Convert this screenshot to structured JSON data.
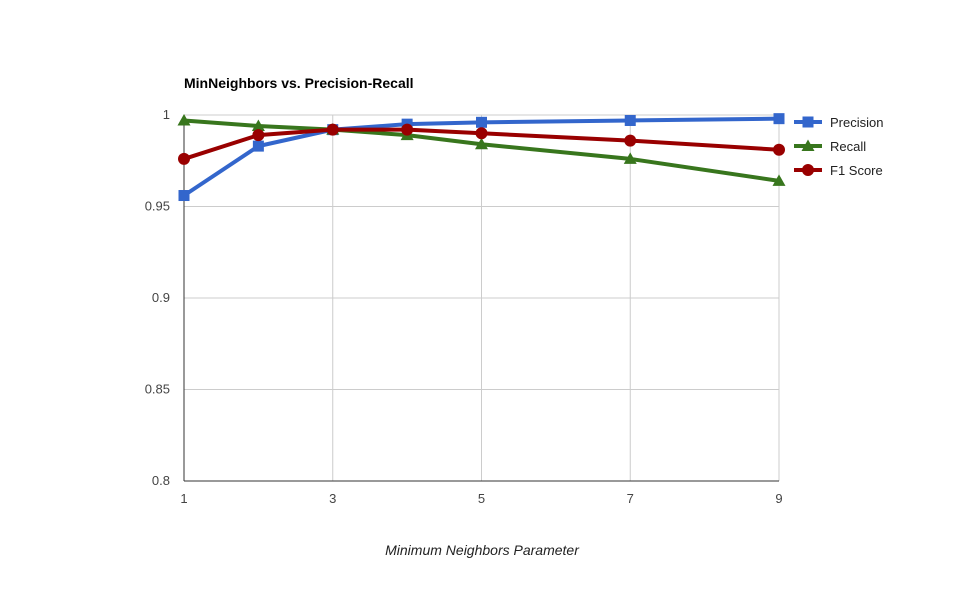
{
  "chart_data": {
    "type": "line",
    "title": "MinNeighbors vs. Precision-Recall",
    "xlabel": "Minimum Neighbors Parameter",
    "ylabel": "",
    "x": [
      1,
      2,
      3,
      4,
      5,
      7,
      9
    ],
    "x_ticks": [
      "1",
      "3",
      "5",
      "7",
      "9"
    ],
    "y_ticks": [
      "0.8",
      "0.85",
      "0.9",
      "0.95",
      "1"
    ],
    "ylim": [
      0.8,
      1
    ],
    "grid": true,
    "legend_position": "right",
    "series": [
      {
        "name": "Precision",
        "color": "#3366cc",
        "marker": "square",
        "values": [
          0.956,
          0.983,
          0.992,
          0.995,
          0.996,
          0.997,
          0.998
        ]
      },
      {
        "name": "Recall",
        "color": "#38761d",
        "marker": "triangle",
        "values": [
          0.997,
          0.994,
          0.992,
          0.989,
          0.984,
          0.976,
          0.964
        ]
      },
      {
        "name": "F1 Score",
        "color": "#990000",
        "marker": "circle",
        "values": [
          0.976,
          0.989,
          0.992,
          0.992,
          0.99,
          0.986,
          0.981
        ]
      }
    ]
  }
}
